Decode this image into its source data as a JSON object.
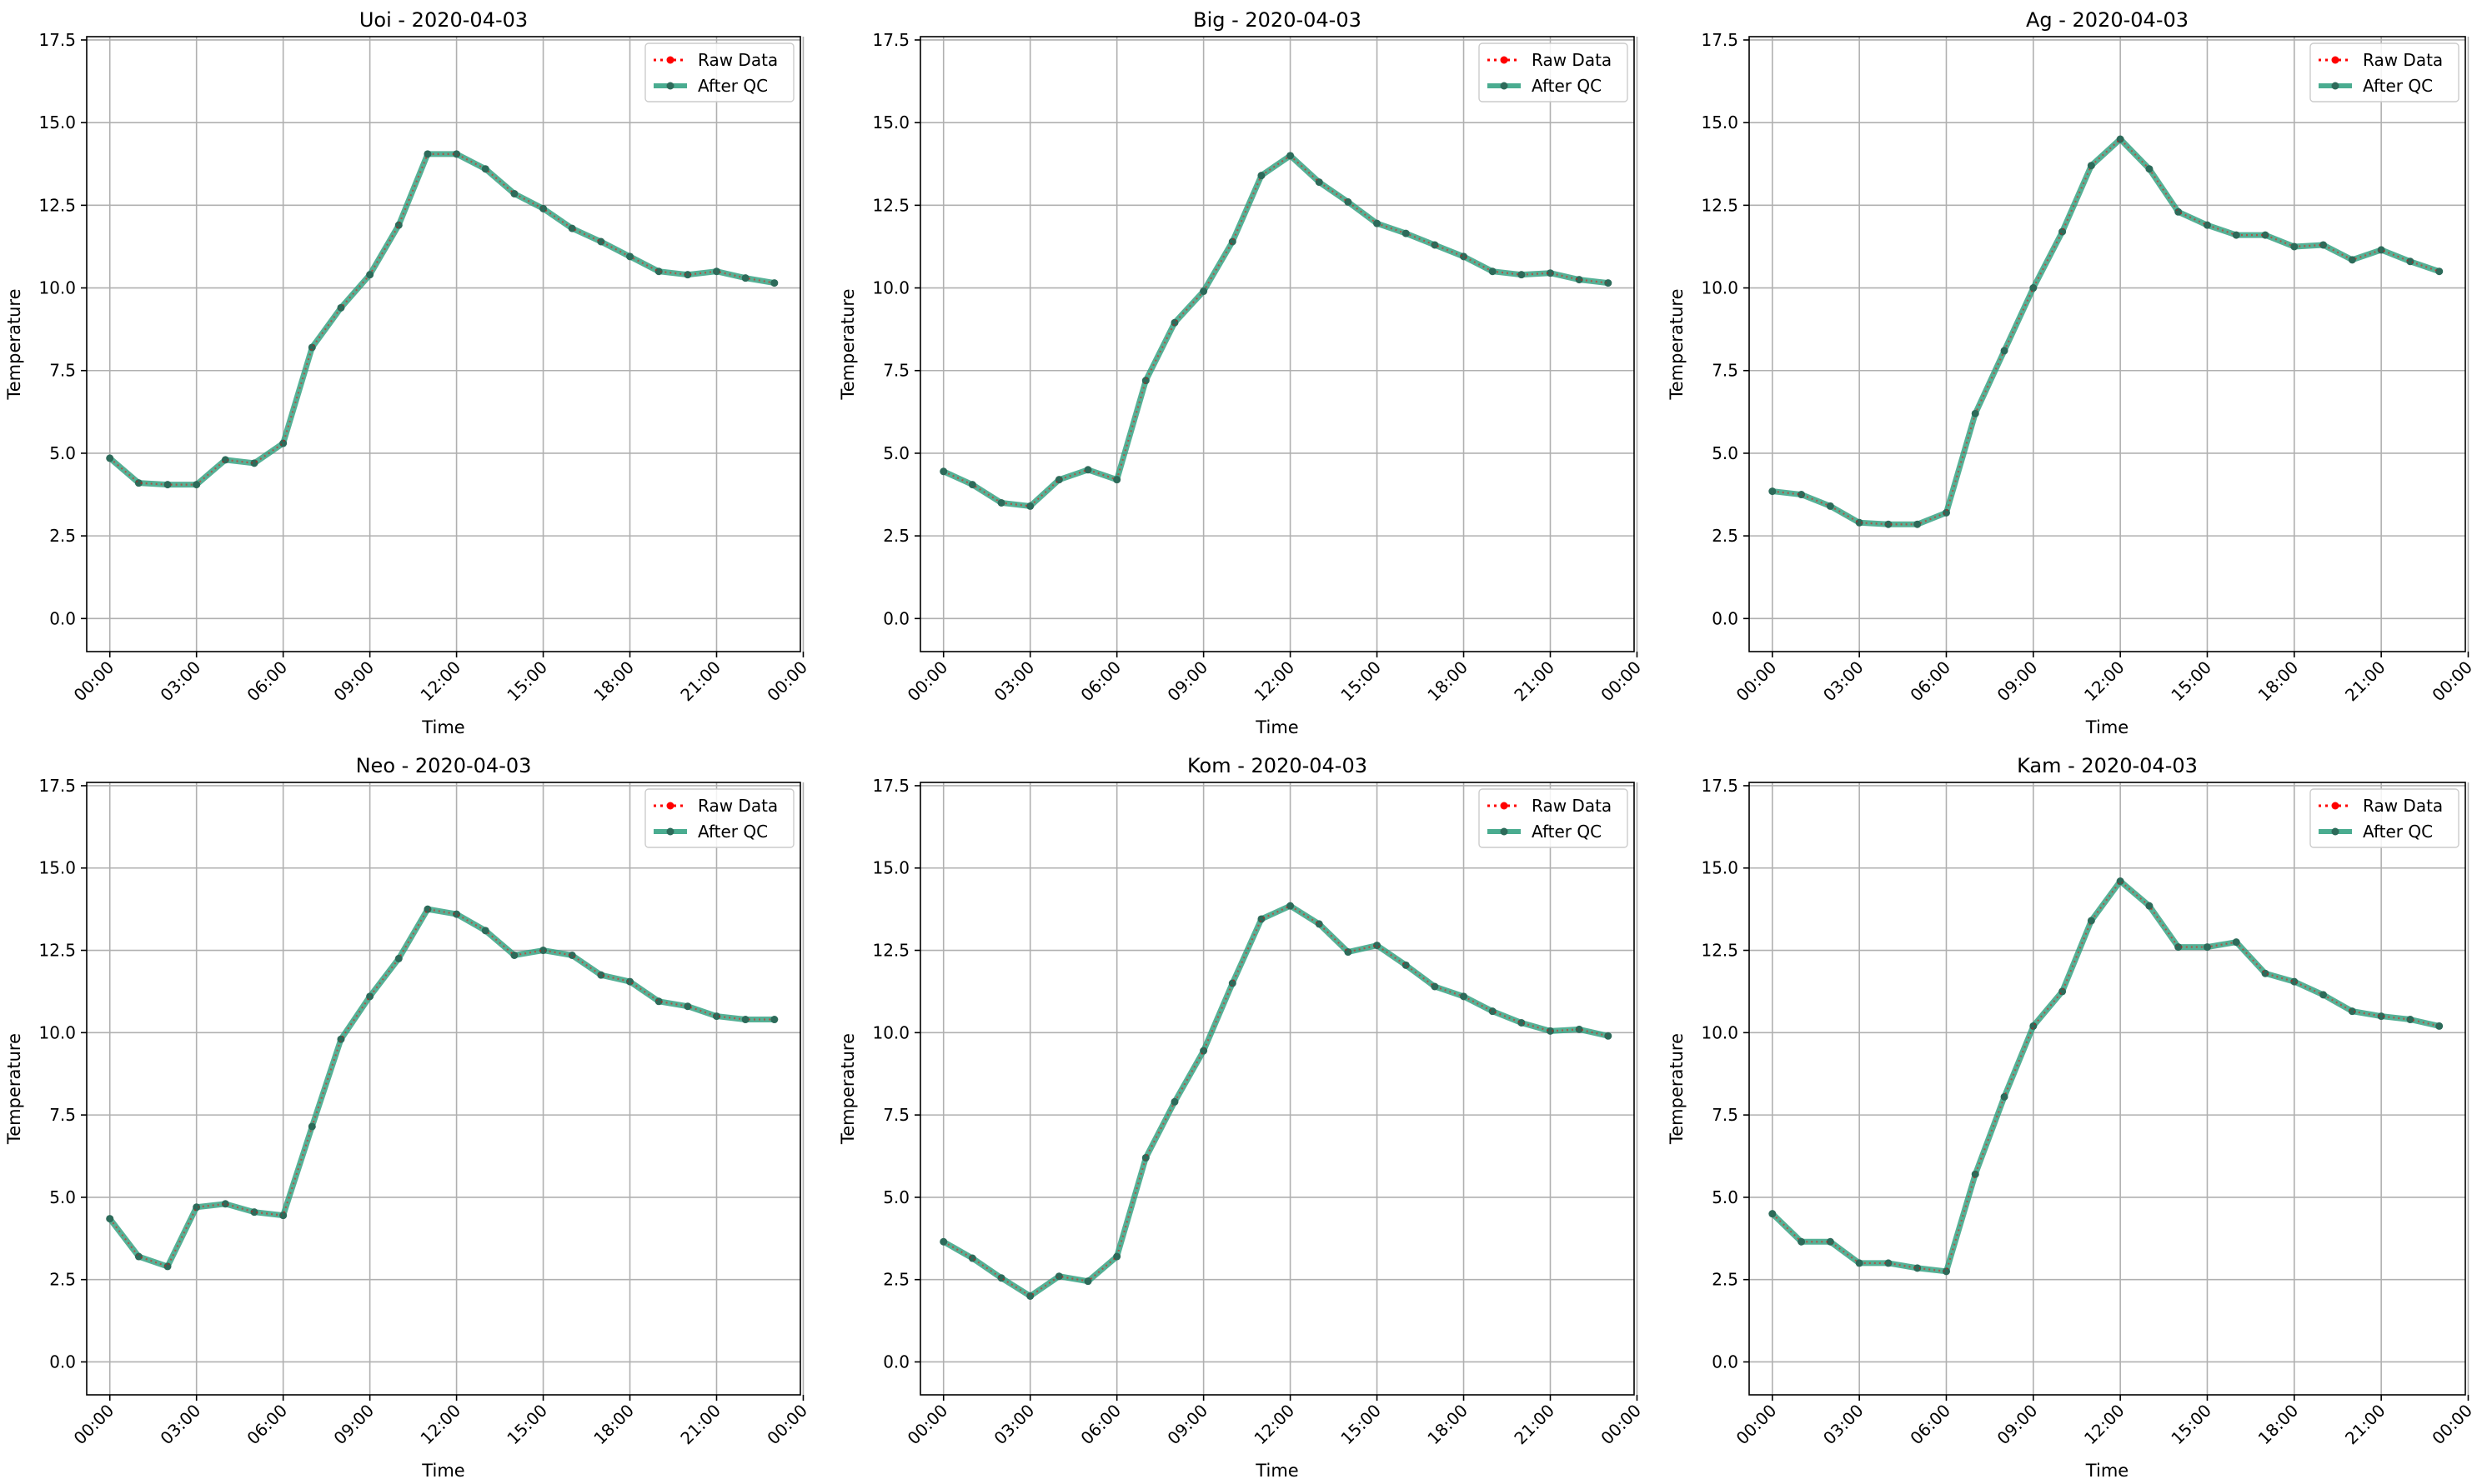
{
  "colors": {
    "raw": "#ff0000",
    "qc": "#2a9d7c",
    "qc_marker": "#2d6b5a",
    "grid": "#b0b0b0",
    "axis": "#000000"
  },
  "chart_data": [
    {
      "type": "line",
      "title": "Uoi - 2020-04-03",
      "xlabel": "Time",
      "ylabel": "Temperature",
      "x": [
        "00:00",
        "01:00",
        "02:00",
        "03:00",
        "04:00",
        "05:00",
        "06:00",
        "07:00",
        "08:00",
        "09:00",
        "10:00",
        "11:00",
        "12:00",
        "13:00",
        "14:00",
        "15:00",
        "16:00",
        "17:00",
        "18:00",
        "19:00",
        "20:00",
        "21:00",
        "22:00",
        "23:00"
      ],
      "xticks": [
        "00:00",
        "03:00",
        "06:00",
        "09:00",
        "12:00",
        "15:00",
        "18:00",
        "21:00",
        "00:00"
      ],
      "yticks": [
        "0.0",
        "2.5",
        "5.0",
        "7.5",
        "10.0",
        "12.5",
        "15.0",
        "17.5"
      ],
      "ylim": [
        -1,
        17.6
      ],
      "grid": true,
      "legend": "top-right",
      "series": [
        {
          "name": "Raw Data",
          "values": [
            4.85,
            4.1,
            4.05,
            4.05,
            4.8,
            4.7,
            5.3,
            8.2,
            9.4,
            10.4,
            11.9,
            14.05,
            14.05,
            13.6,
            12.85,
            12.4,
            11.8,
            11.4,
            10.95,
            10.5,
            10.4,
            10.5,
            10.3,
            10.15
          ]
        },
        {
          "name": "After QC",
          "values": [
            4.85,
            4.1,
            4.05,
            4.05,
            4.8,
            4.7,
            5.3,
            8.2,
            9.4,
            10.4,
            11.9,
            14.05,
            14.05,
            13.6,
            12.85,
            12.4,
            11.8,
            11.4,
            10.95,
            10.5,
            10.4,
            10.5,
            10.3,
            10.15
          ]
        }
      ]
    },
    {
      "type": "line",
      "title": "Big - 2020-04-03",
      "xlabel": "Time",
      "ylabel": "Temperature",
      "x": [
        "00:00",
        "01:00",
        "02:00",
        "03:00",
        "04:00",
        "05:00",
        "06:00",
        "07:00",
        "08:00",
        "09:00",
        "10:00",
        "11:00",
        "12:00",
        "13:00",
        "14:00",
        "15:00",
        "16:00",
        "17:00",
        "18:00",
        "19:00",
        "20:00",
        "21:00",
        "22:00",
        "23:00"
      ],
      "xticks": [
        "00:00",
        "03:00",
        "06:00",
        "09:00",
        "12:00",
        "15:00",
        "18:00",
        "21:00",
        "00:00"
      ],
      "yticks": [
        "0.0",
        "2.5",
        "5.0",
        "7.5",
        "10.0",
        "12.5",
        "15.0",
        "17.5"
      ],
      "ylim": [
        -1,
        17.6
      ],
      "grid": true,
      "legend": "top-right",
      "series": [
        {
          "name": "Raw Data",
          "values": [
            4.45,
            4.05,
            3.5,
            3.4,
            4.2,
            4.5,
            4.2,
            7.2,
            8.95,
            9.9,
            11.4,
            13.4,
            14.0,
            13.2,
            12.6,
            11.95,
            11.65,
            11.3,
            10.95,
            10.5,
            10.4,
            10.45,
            10.25,
            10.15
          ]
        },
        {
          "name": "After QC",
          "values": [
            4.45,
            4.05,
            3.5,
            3.4,
            4.2,
            4.5,
            4.2,
            7.2,
            8.95,
            9.9,
            11.4,
            13.4,
            14.0,
            13.2,
            12.6,
            11.95,
            11.65,
            11.3,
            10.95,
            10.5,
            10.4,
            10.45,
            10.25,
            10.15
          ]
        }
      ]
    },
    {
      "type": "line",
      "title": "Ag - 2020-04-03",
      "xlabel": "Time",
      "ylabel": "Temperature",
      "x": [
        "00:00",
        "01:00",
        "02:00",
        "03:00",
        "04:00",
        "05:00",
        "06:00",
        "07:00",
        "08:00",
        "09:00",
        "10:00",
        "11:00",
        "12:00",
        "13:00",
        "14:00",
        "15:00",
        "16:00",
        "17:00",
        "18:00",
        "19:00",
        "20:00",
        "21:00",
        "22:00",
        "23:00"
      ],
      "xticks": [
        "00:00",
        "03:00",
        "06:00",
        "09:00",
        "12:00",
        "15:00",
        "18:00",
        "21:00",
        "00:00"
      ],
      "yticks": [
        "0.0",
        "2.5",
        "5.0",
        "7.5",
        "10.0",
        "12.5",
        "15.0",
        "17.5"
      ],
      "ylim": [
        -1,
        17.6
      ],
      "grid": true,
      "legend": "top-right",
      "series": [
        {
          "name": "Raw Data",
          "values": [
            3.85,
            3.75,
            3.4,
            2.9,
            2.85,
            2.85,
            3.2,
            6.2,
            8.1,
            10.0,
            11.7,
            13.7,
            14.5,
            13.6,
            12.3,
            11.9,
            11.6,
            11.6,
            11.25,
            11.3,
            10.85,
            11.15,
            10.8,
            10.5
          ]
        },
        {
          "name": "After QC",
          "values": [
            3.85,
            3.75,
            3.4,
            2.9,
            2.85,
            2.85,
            3.2,
            6.2,
            8.1,
            10.0,
            11.7,
            13.7,
            14.5,
            13.6,
            12.3,
            11.9,
            11.6,
            11.6,
            11.25,
            11.3,
            10.85,
            11.15,
            10.8,
            10.5
          ]
        }
      ]
    },
    {
      "type": "line",
      "title": "Neo - 2020-04-03",
      "xlabel": "Time",
      "ylabel": "Temperature",
      "x": [
        "00:00",
        "01:00",
        "02:00",
        "03:00",
        "04:00",
        "05:00",
        "06:00",
        "07:00",
        "08:00",
        "09:00",
        "10:00",
        "11:00",
        "12:00",
        "13:00",
        "14:00",
        "15:00",
        "16:00",
        "17:00",
        "18:00",
        "19:00",
        "20:00",
        "21:00",
        "22:00",
        "23:00"
      ],
      "xticks": [
        "00:00",
        "03:00",
        "06:00",
        "09:00",
        "12:00",
        "15:00",
        "18:00",
        "21:00",
        "00:00"
      ],
      "yticks": [
        "0.0",
        "2.5",
        "5.0",
        "7.5",
        "10.0",
        "12.5",
        "15.0",
        "17.5"
      ],
      "ylim": [
        -1,
        17.6
      ],
      "grid": true,
      "legend": "top-right",
      "series": [
        {
          "name": "Raw Data",
          "values": [
            4.35,
            3.2,
            2.9,
            4.7,
            4.8,
            4.55,
            4.45,
            7.15,
            9.8,
            11.1,
            12.25,
            13.75,
            13.6,
            13.1,
            12.35,
            12.5,
            12.35,
            11.75,
            11.55,
            10.95,
            10.8,
            10.5,
            10.4,
            10.4
          ]
        },
        {
          "name": "After QC",
          "values": [
            4.35,
            3.2,
            2.9,
            4.7,
            4.8,
            4.55,
            4.45,
            7.15,
            9.8,
            11.1,
            12.25,
            13.75,
            13.6,
            13.1,
            12.35,
            12.5,
            12.35,
            11.75,
            11.55,
            10.95,
            10.8,
            10.5,
            10.4,
            10.4
          ]
        }
      ]
    },
    {
      "type": "line",
      "title": "Kom - 2020-04-03",
      "xlabel": "Time",
      "ylabel": "Temperature",
      "x": [
        "00:00",
        "01:00",
        "02:00",
        "03:00",
        "04:00",
        "05:00",
        "06:00",
        "07:00",
        "08:00",
        "09:00",
        "10:00",
        "11:00",
        "12:00",
        "13:00",
        "14:00",
        "15:00",
        "16:00",
        "17:00",
        "18:00",
        "19:00",
        "20:00",
        "21:00",
        "22:00",
        "23:00"
      ],
      "xticks": [
        "00:00",
        "03:00",
        "06:00",
        "09:00",
        "12:00",
        "15:00",
        "18:00",
        "21:00",
        "00:00"
      ],
      "yticks": [
        "0.0",
        "2.5",
        "5.0",
        "7.5",
        "10.0",
        "12.5",
        "15.0",
        "17.5"
      ],
      "ylim": [
        -1,
        17.6
      ],
      "grid": true,
      "legend": "top-right",
      "series": [
        {
          "name": "Raw Data",
          "values": [
            3.65,
            3.15,
            2.55,
            2.0,
            2.6,
            2.45,
            3.2,
            6.2,
            7.9,
            9.45,
            11.5,
            13.45,
            13.85,
            13.3,
            12.45,
            12.65,
            12.05,
            11.4,
            11.1,
            10.65,
            10.3,
            10.05,
            10.1,
            9.9
          ]
        },
        {
          "name": "After QC",
          "values": [
            3.65,
            3.15,
            2.55,
            2.0,
            2.6,
            2.45,
            3.2,
            6.2,
            7.9,
            9.45,
            11.5,
            13.45,
            13.85,
            13.3,
            12.45,
            12.65,
            12.05,
            11.4,
            11.1,
            10.65,
            10.3,
            10.05,
            10.1,
            9.9
          ]
        }
      ]
    },
    {
      "type": "line",
      "title": "Kam - 2020-04-03",
      "xlabel": "Time",
      "ylabel": "Temperature",
      "x": [
        "00:00",
        "01:00",
        "02:00",
        "03:00",
        "04:00",
        "05:00",
        "06:00",
        "07:00",
        "08:00",
        "09:00",
        "10:00",
        "11:00",
        "12:00",
        "13:00",
        "14:00",
        "15:00",
        "16:00",
        "17:00",
        "18:00",
        "19:00",
        "20:00",
        "21:00",
        "22:00",
        "23:00"
      ],
      "xticks": [
        "00:00",
        "03:00",
        "06:00",
        "09:00",
        "12:00",
        "15:00",
        "18:00",
        "21:00",
        "00:00"
      ],
      "yticks": [
        "0.0",
        "2.5",
        "5.0",
        "7.5",
        "10.0",
        "12.5",
        "15.0",
        "17.5"
      ],
      "ylim": [
        -1,
        17.6
      ],
      "grid": true,
      "legend": "top-right",
      "series": [
        {
          "name": "Raw Data",
          "values": [
            4.5,
            3.65,
            3.65,
            3.0,
            3.0,
            2.85,
            2.75,
            5.7,
            8.05,
            10.2,
            11.25,
            13.4,
            14.6,
            13.85,
            12.6,
            12.6,
            12.75,
            11.8,
            11.55,
            11.15,
            10.65,
            10.5,
            10.4,
            10.2
          ]
        },
        {
          "name": "After QC",
          "values": [
            4.5,
            3.65,
            3.65,
            3.0,
            3.0,
            2.85,
            2.75,
            5.7,
            8.05,
            10.2,
            11.25,
            13.4,
            14.6,
            13.85,
            12.6,
            12.6,
            12.75,
            11.8,
            11.55,
            11.15,
            10.65,
            10.5,
            10.4,
            10.2
          ]
        }
      ]
    }
  ]
}
